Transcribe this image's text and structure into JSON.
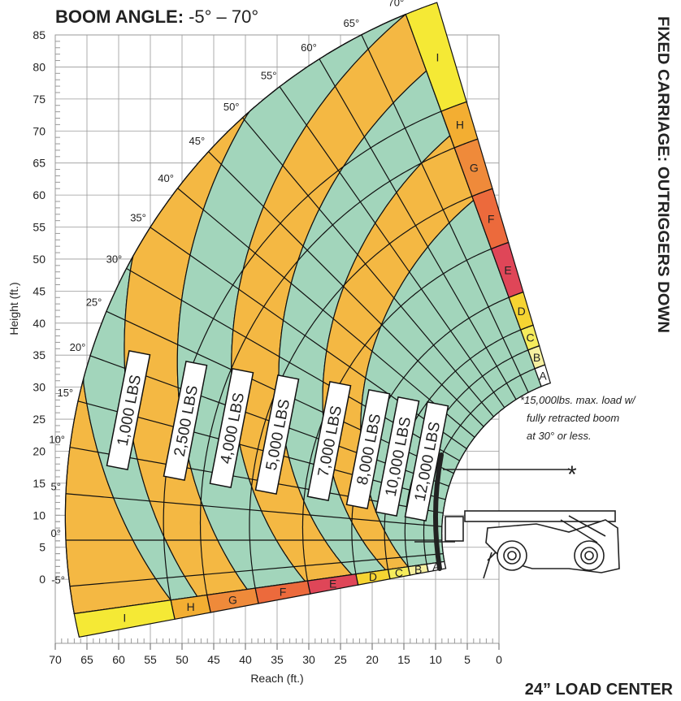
{
  "chart_data": {
    "type": "load_chart",
    "title": "BOOM ANGLE:",
    "subtitle": "-5° – 70°",
    "side_title": "FIXED CARRIAGE: OUTRIGGERS DOWN",
    "load_center": "24” LOAD CENTER",
    "note_marker": "*",
    "note": [
      "*15,000lbs. max. load w/",
      "fully retracted boom",
      "at 30° or less."
    ],
    "x_label": "Reach (ft.)",
    "y_label": "Height (ft.)",
    "xlim": [
      70,
      0
    ],
    "xticks": [
      70,
      65,
      60,
      55,
      50,
      45,
      40,
      35,
      30,
      25,
      20,
      15,
      10,
      5,
      0
    ],
    "ylim": [
      -10,
      85
    ],
    "yticks": [
      0,
      5,
      10,
      15,
      20,
      25,
      30,
      35,
      40,
      45,
      50,
      55,
      60,
      65,
      70,
      75,
      80,
      85
    ],
    "grid": true,
    "boom_angles": [
      {
        "value": -5,
        "label": "-5°"
      },
      {
        "value": 0,
        "label": "0°"
      },
      {
        "value": 5,
        "label": "5°"
      },
      {
        "value": 10,
        "label": "10°"
      },
      {
        "value": 15,
        "label": "15°"
      },
      {
        "value": 20,
        "label": "20°"
      },
      {
        "value": 25,
        "label": "25°"
      },
      {
        "value": 30,
        "label": "30°"
      },
      {
        "value": 35,
        "label": "35°"
      },
      {
        "value": 40,
        "label": "40°"
      },
      {
        "value": 45,
        "label": "45°"
      },
      {
        "value": 50,
        "label": "50°"
      },
      {
        "value": 55,
        "label": "55°"
      },
      {
        "value": 60,
        "label": "60°"
      },
      {
        "value": 65,
        "label": "65°"
      },
      {
        "value": 70,
        "label": "70°"
      }
    ],
    "extension_bands": [
      "A",
      "B",
      "C",
      "D",
      "E",
      "F",
      "G",
      "H",
      "I"
    ],
    "band_colors": [
      "#ffffff",
      "#f6f0a0",
      "#f5ec5c",
      "#f6d432",
      "#df4658",
      "#ec6a3c",
      "#ef8a3a",
      "#f3ae32",
      "#f5e935"
    ],
    "zones": [
      {
        "value": 1000,
        "label": "1,000 LBS",
        "color": "#f4b843"
      },
      {
        "value": 2500,
        "label": "2,500 LBS",
        "color": "#a2d5bb"
      },
      {
        "value": 4000,
        "label": "4,000 LBS",
        "color": "#f4b843"
      },
      {
        "value": 5000,
        "label": "5,000 LBS",
        "color": "#a2d5bb"
      },
      {
        "value": 7000,
        "label": "7,000 LBS",
        "color": "#f4b843"
      },
      {
        "value": 8000,
        "label": "8,000 LBS",
        "color": "#a2d5bb"
      },
      {
        "value": 10000,
        "label": "10,000 LBS",
        "color": "#f4b843"
      },
      {
        "value": 12000,
        "label": "12,000 LBS",
        "color": "#a2d5bb"
      }
    ]
  }
}
